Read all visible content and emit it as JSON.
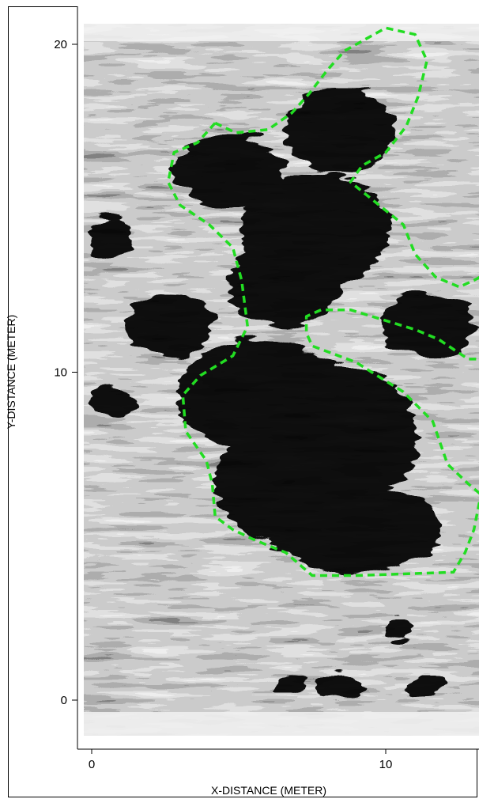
{
  "chart_data": {
    "type": "heatmap",
    "title": "",
    "xlabel": "X-DISTANCE (METER)",
    "ylabel": "Y-DISTANCE (METER)",
    "xlim": [
      -0.3,
      13.2
    ],
    "ylim": [
      -1.1,
      21.1
    ],
    "x_ticks": [
      0,
      10
    ],
    "y_ticks": [
      0,
      10,
      20
    ],
    "colormap": "grayscale (black = high, white = low)",
    "grid": false,
    "legend": "none",
    "outline_color": "#22dd22",
    "outlines": [
      {
        "points": [
          [
            4.2,
            17.6
          ],
          [
            4.9,
            17.3
          ],
          [
            6.0,
            17.4
          ],
          [
            6.8,
            17.9
          ],
          [
            7.4,
            18.5
          ],
          [
            8.0,
            19.2
          ],
          [
            8.6,
            19.8
          ],
          [
            9.4,
            20.2
          ],
          [
            10.0,
            20.5
          ],
          [
            11.0,
            20.3
          ],
          [
            11.4,
            19.5
          ],
          [
            11.1,
            18.4
          ],
          [
            10.7,
            17.5
          ],
          [
            10.0,
            16.7
          ],
          [
            9.2,
            16.3
          ],
          [
            8.8,
            15.8
          ],
          [
            10.6,
            14.5
          ],
          [
            11.0,
            13.6
          ],
          [
            11.7,
            12.9
          ],
          [
            12.5,
            12.6
          ],
          [
            13.0,
            12.8
          ],
          [
            13.2,
            12.9
          ]
        ],
        "label": ""
      },
      {
        "points": [
          [
            4.2,
            17.6
          ],
          [
            3.6,
            17.0
          ],
          [
            2.8,
            16.7
          ],
          [
            2.6,
            15.8
          ],
          [
            3.0,
            15.1
          ],
          [
            4.0,
            14.5
          ],
          [
            4.8,
            13.8
          ],
          [
            5.1,
            12.8
          ],
          [
            5.3,
            11.4
          ],
          [
            4.8,
            10.5
          ],
          [
            3.7,
            9.9
          ],
          [
            3.1,
            9.3
          ],
          [
            3.2,
            8.2
          ],
          [
            3.9,
            7.3
          ],
          [
            4.1,
            6.6
          ],
          [
            4.2,
            5.6
          ],
          [
            4.8,
            5.2
          ],
          [
            5.5,
            4.9
          ],
          [
            6.6,
            4.5
          ],
          [
            7.5,
            3.8
          ],
          [
            9.0,
            3.8
          ],
          [
            12.3,
            3.9
          ],
          [
            12.7,
            4.5
          ],
          [
            13.0,
            5.2
          ],
          [
            13.2,
            6.1
          ]
        ],
        "label": ""
      },
      {
        "points": [
          [
            13.2,
            6.3
          ],
          [
            12.8,
            6.6
          ],
          [
            12.1,
            7.2
          ],
          [
            11.6,
            8.5
          ],
          [
            10.6,
            9.4
          ],
          [
            9.7,
            9.9
          ],
          [
            9.0,
            10.3
          ],
          [
            8.1,
            10.6
          ],
          [
            7.5,
            10.8
          ],
          [
            7.3,
            11.2
          ],
          [
            7.3,
            11.7
          ],
          [
            7.8,
            11.9
          ],
          [
            8.8,
            11.9
          ],
          [
            9.9,
            11.6
          ],
          [
            11.0,
            11.3
          ],
          [
            11.8,
            11.0
          ],
          [
            12.3,
            10.7
          ],
          [
            12.8,
            10.4
          ],
          [
            13.2,
            10.4
          ]
        ],
        "label": ""
      }
    ]
  }
}
